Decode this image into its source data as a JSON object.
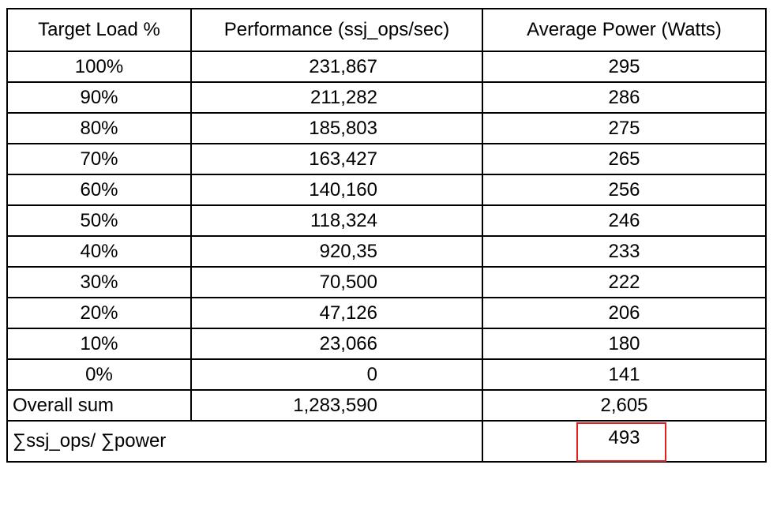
{
  "headers": [
    "Target Load %",
    "Performance (ssj_ops/sec)",
    "Average Power (Watts)"
  ],
  "rows": [
    {
      "load": "100%",
      "perf": "231,867",
      "power": "295"
    },
    {
      "load": "90%",
      "perf": "211,282",
      "power": "286"
    },
    {
      "load": "80%",
      "perf": "185,803",
      "power": "275"
    },
    {
      "load": "70%",
      "perf": "163,427",
      "power": "265"
    },
    {
      "load": "60%",
      "perf": "140,160",
      "power": "256"
    },
    {
      "load": "50%",
      "perf": "118,324",
      "power": "246"
    },
    {
      "load": "40%",
      "perf": "920,35",
      "power": "233"
    },
    {
      "load": "30%",
      "perf": "70,500",
      "power": "222"
    },
    {
      "load": "20%",
      "perf": "47,126",
      "power": "206"
    },
    {
      "load": "10%",
      "perf": "23,066",
      "power": "180"
    },
    {
      "load": "0%",
      "perf": "0",
      "power": "141"
    }
  ],
  "overall": {
    "label": "Overall sum",
    "perf": "1,283,590",
    "power": "2,605"
  },
  "ratio": {
    "label": "∑ssj_ops/ ∑power",
    "value": "493"
  },
  "colors": {
    "highlight": "#e02020",
    "border": "#000000"
  }
}
